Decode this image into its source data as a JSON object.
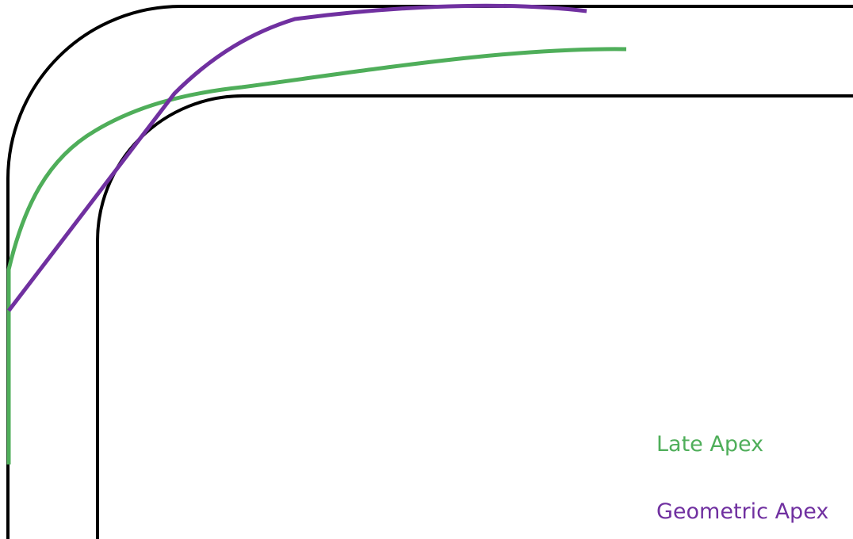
{
  "legend": [
    {
      "label": "Late Apex"
    },
    {
      "label": "Geometric Apex"
    }
  ]
}
